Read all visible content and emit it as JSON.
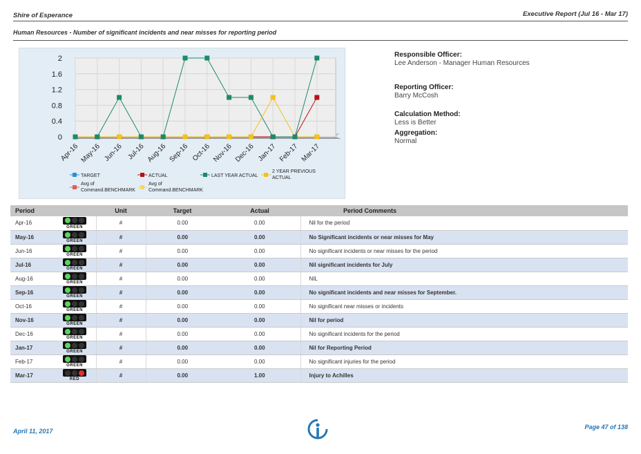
{
  "header": {
    "org": "Shire of Esperance",
    "report": "Executive Report (Jul 16 - Mar 17)",
    "subtitle": "Human Resources - Number of significant incidents and near misses for reporting period"
  },
  "info": {
    "responsible_label": "Responsible Officer:",
    "responsible_value": "Lee Anderson - Manager Human Resources",
    "reporting_label": "Reporting Officer:",
    "reporting_value": "Barry McCosh",
    "calc_label": "Calculation Method:",
    "calc_value": "Less is Better",
    "agg_label": "Aggregation:",
    "agg_value": "Normal"
  },
  "chart_data": {
    "type": "line",
    "categories": [
      "Apr-16",
      "May-16",
      "Jun-16",
      "Jul-16",
      "Aug-16",
      "Sep-16",
      "Oct-16",
      "Nov-16",
      "Dec-16",
      "Jan-17",
      "Feb-17",
      "Mar-17"
    ],
    "yticks": [
      "0",
      "0.4",
      "0.8",
      "1.2",
      "1.6",
      "2"
    ],
    "ylim": [
      0,
      2
    ],
    "series": [
      {
        "name": "TARGET",
        "color": "#2e8fd1",
        "values": [
          0,
          0,
          0,
          0,
          0,
          0,
          0,
          0,
          0,
          0,
          0,
          0
        ]
      },
      {
        "name": "ACTUAL",
        "color": "#b3121a",
        "values": [
          0,
          0,
          0,
          0,
          0,
          0,
          0,
          0,
          0,
          0,
          0,
          1
        ]
      },
      {
        "name": "LAST YEAR ACTUAL",
        "color": "#1c8a6a",
        "values": [
          0,
          0,
          1,
          0,
          0,
          2,
          2,
          1,
          1,
          0,
          0,
          2
        ]
      },
      {
        "name": "2 YEAR PREVIOUS ACTUAL",
        "color": "#f3c21a",
        "values": [
          0,
          0,
          0,
          0,
          0,
          0,
          0,
          0,
          0,
          1,
          0,
          0
        ]
      }
    ],
    "legend": [
      {
        "label": "TARGET",
        "color": "#2e8fd1"
      },
      {
        "label": "ACTUAL",
        "color": "#b3121a"
      },
      {
        "label": "LAST YEAR ACTUAL",
        "color": "#1c8a6a"
      },
      {
        "label1": "2 YEAR PREVIOUS",
        "label2": "ACTUAL",
        "color": "#f3c21a"
      },
      {
        "label1": "Avg of",
        "label2": "Command.BENCHMARK",
        "color": "#e55a5a"
      },
      {
        "label1": "Avg of",
        "label2": "Command.BENCHMARK",
        "color": "#f5d56a"
      }
    ]
  },
  "table": {
    "headers": {
      "period": "Period",
      "unit": "Unit",
      "target": "Target",
      "actual": "Actual",
      "comments": "Period Comments"
    },
    "rows": [
      {
        "period": "Apr-16",
        "status": "GREEN",
        "unit": "#",
        "target": "0.00",
        "actual": "0.00",
        "comment": "Nil for the period"
      },
      {
        "period": "May-16",
        "status": "GREEN",
        "unit": "#",
        "target": "0.00",
        "actual": "0.00",
        "comment": "No Significant incidents or near misses for May"
      },
      {
        "period": "Jun-16",
        "status": "GREEN",
        "unit": "#",
        "target": "0.00",
        "actual": "0.00",
        "comment": "No significant incidents or near misses for the period"
      },
      {
        "period": "Jul-16",
        "status": "GREEN",
        "unit": "#",
        "target": "0.00",
        "actual": "0.00",
        "comment": "Nil significant incidents for July"
      },
      {
        "period": "Aug-16",
        "status": "GREEN",
        "unit": "#",
        "target": "0.00",
        "actual": "0.00",
        "comment": "NIL"
      },
      {
        "period": "Sep-16",
        "status": "GREEN",
        "unit": "#",
        "target": "0.00",
        "actual": "0.00",
        "comment": "No significant incidents and near misses for September."
      },
      {
        "period": "Oct-16",
        "status": "GREEN",
        "unit": "#",
        "target": "0.00",
        "actual": "0.00",
        "comment": "No significant near misses or incidents"
      },
      {
        "period": "Nov-16",
        "status": "GREEN",
        "unit": "#",
        "target": "0.00",
        "actual": "0.00",
        "comment": "Nil for period"
      },
      {
        "period": "Dec-16",
        "status": "GREEN",
        "unit": "#",
        "target": "0.00",
        "actual": "0.00",
        "comment": "No significant incidents for the period"
      },
      {
        "period": "Jan-17",
        "status": "GREEN",
        "unit": "#",
        "target": "0.00",
        "actual": "0.00",
        "comment": "Nil for Reporting Period"
      },
      {
        "period": "Feb-17",
        "status": "GREEN",
        "unit": "#",
        "target": "0.00",
        "actual": "0.00",
        "comment": "No significant injuries for the period"
      },
      {
        "period": "Mar-17",
        "status": "RED",
        "unit": "#",
        "target": "0.00",
        "actual": "1.00",
        "comment": "Injury to Achilles"
      }
    ]
  },
  "footer": {
    "date": "April 11, 2017",
    "page": "Page 47 of 138"
  }
}
